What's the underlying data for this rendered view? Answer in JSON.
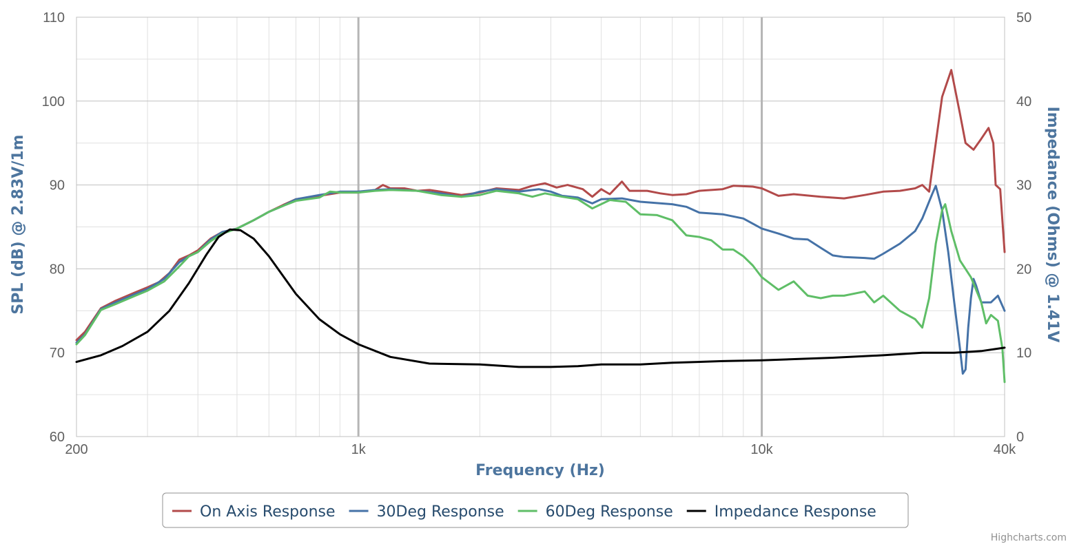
{
  "chart_data": {
    "type": "line",
    "credits": "Highcharts.com",
    "legend_position": "bottom-center",
    "grid": true,
    "xaxis": {
      "title": "Frequency (Hz)",
      "scale": "log",
      "range": [
        200,
        40000
      ],
      "tick_labels": [
        {
          "value": 200,
          "label": "200"
        },
        {
          "value": 1000,
          "label": "1k"
        },
        {
          "value": 10000,
          "label": "10k"
        },
        {
          "value": 40000,
          "label": "40k"
        }
      ]
    },
    "yaxis_left": {
      "title": "SPL (dB) @ 2.83V/1m",
      "range": [
        60,
        110
      ],
      "ticks": [
        60,
        70,
        80,
        90,
        100,
        110
      ]
    },
    "yaxis_right": {
      "title": "Impedance (Ohms) @ 1.41V",
      "range": [
        0,
        50
      ],
      "ticks": [
        0,
        10,
        20,
        30,
        40,
        50
      ]
    },
    "series": [
      {
        "name": "On Axis Response",
        "color": "#b24a4a",
        "axis": "left",
        "points": [
          [
            200,
            71.5
          ],
          [
            210,
            72.5
          ],
          [
            230,
            75.3
          ],
          [
            250,
            76.2
          ],
          [
            280,
            77.2
          ],
          [
            300,
            77.8
          ],
          [
            320,
            78.4
          ],
          [
            340,
            79.5
          ],
          [
            360,
            81.1
          ],
          [
            380,
            81.6
          ],
          [
            400,
            82.2
          ],
          [
            430,
            83.6
          ],
          [
            460,
            84.4
          ],
          [
            500,
            84.8
          ],
          [
            550,
            85.8
          ],
          [
            600,
            86.8
          ],
          [
            650,
            87.6
          ],
          [
            700,
            88.3
          ],
          [
            800,
            88.7
          ],
          [
            900,
            89.1
          ],
          [
            1000,
            89.1
          ],
          [
            1100,
            89.4
          ],
          [
            1150,
            90.0
          ],
          [
            1200,
            89.6
          ],
          [
            1300,
            89.6
          ],
          [
            1400,
            89.3
          ],
          [
            1500,
            89.4
          ],
          [
            1600,
            89.2
          ],
          [
            1800,
            88.8
          ],
          [
            2000,
            89.1
          ],
          [
            2200,
            89.6
          ],
          [
            2500,
            89.4
          ],
          [
            2700,
            89.9
          ],
          [
            2900,
            90.2
          ],
          [
            3100,
            89.7
          ],
          [
            3300,
            90.0
          ],
          [
            3600,
            89.5
          ],
          [
            3800,
            88.6
          ],
          [
            4000,
            89.5
          ],
          [
            4200,
            88.9
          ],
          [
            4500,
            90.4
          ],
          [
            4700,
            89.3
          ],
          [
            5200,
            89.3
          ],
          [
            5600,
            89.0
          ],
          [
            6000,
            88.8
          ],
          [
            6500,
            88.9
          ],
          [
            7000,
            89.3
          ],
          [
            8000,
            89.5
          ],
          [
            8500,
            89.9
          ],
          [
            9500,
            89.8
          ],
          [
            10000,
            89.6
          ],
          [
            11000,
            88.7
          ],
          [
            12000,
            88.9
          ],
          [
            14000,
            88.6
          ],
          [
            16000,
            88.4
          ],
          [
            18000,
            88.8
          ],
          [
            20000,
            89.2
          ],
          [
            22000,
            89.3
          ],
          [
            24000,
            89.6
          ],
          [
            25000,
            90.0
          ],
          [
            26000,
            89.2
          ],
          [
            27000,
            95.0
          ],
          [
            28000,
            100.5
          ],
          [
            29500,
            103.7
          ],
          [
            31000,
            98.5
          ],
          [
            32000,
            95.0
          ],
          [
            33500,
            94.2
          ],
          [
            35000,
            95.5
          ],
          [
            36500,
            96.8
          ],
          [
            37500,
            95.0
          ],
          [
            38000,
            90.0
          ],
          [
            39000,
            89.5
          ],
          [
            40000,
            82.0
          ]
        ]
      },
      {
        "name": "30Deg Response",
        "color": "#4572a7",
        "axis": "left",
        "points": [
          [
            200,
            71.2
          ],
          [
            210,
            72.2
          ],
          [
            230,
            75.2
          ],
          [
            250,
            76.0
          ],
          [
            280,
            77.0
          ],
          [
            300,
            77.6
          ],
          [
            330,
            78.8
          ],
          [
            360,
            80.8
          ],
          [
            380,
            81.5
          ],
          [
            400,
            82.0
          ],
          [
            430,
            83.5
          ],
          [
            460,
            84.4
          ],
          [
            500,
            84.8
          ],
          [
            550,
            85.8
          ],
          [
            600,
            86.8
          ],
          [
            650,
            87.5
          ],
          [
            700,
            88.3
          ],
          [
            800,
            88.8
          ],
          [
            900,
            89.2
          ],
          [
            1000,
            89.2
          ],
          [
            1100,
            89.4
          ],
          [
            1200,
            89.5
          ],
          [
            1400,
            89.3
          ],
          [
            1600,
            89.0
          ],
          [
            1800,
            88.6
          ],
          [
            2000,
            89.2
          ],
          [
            2200,
            89.5
          ],
          [
            2500,
            89.2
          ],
          [
            2800,
            89.5
          ],
          [
            3000,
            89.2
          ],
          [
            3200,
            88.7
          ],
          [
            3500,
            88.5
          ],
          [
            3800,
            87.8
          ],
          [
            4000,
            88.3
          ],
          [
            4500,
            88.4
          ],
          [
            5000,
            88.0
          ],
          [
            6000,
            87.7
          ],
          [
            6500,
            87.4
          ],
          [
            7000,
            86.7
          ],
          [
            7500,
            86.6
          ],
          [
            8000,
            86.5
          ],
          [
            9000,
            86.0
          ],
          [
            10000,
            84.8
          ],
          [
            11000,
            84.2
          ],
          [
            12000,
            83.6
          ],
          [
            13000,
            83.5
          ],
          [
            14000,
            82.5
          ],
          [
            15000,
            81.6
          ],
          [
            16000,
            81.4
          ],
          [
            18000,
            81.3
          ],
          [
            19000,
            81.2
          ],
          [
            20000,
            81.8
          ],
          [
            22000,
            83.0
          ],
          [
            24000,
            84.5
          ],
          [
            25000,
            86.0
          ],
          [
            26500,
            89.0
          ],
          [
            27000,
            89.9
          ],
          [
            28000,
            87.0
          ],
          [
            29000,
            82.0
          ],
          [
            30000,
            76.0
          ],
          [
            31000,
            70.5
          ],
          [
            31500,
            67.5
          ],
          [
            32000,
            68.0
          ],
          [
            32500,
            73.0
          ],
          [
            33000,
            76.5
          ],
          [
            33500,
            78.8
          ],
          [
            34000,
            78.0
          ],
          [
            35000,
            76.0
          ],
          [
            37000,
            76.0
          ],
          [
            38500,
            76.8
          ],
          [
            40000,
            75.0
          ]
        ]
      },
      {
        "name": "60Deg Response",
        "color": "#5fbe67",
        "axis": "left",
        "points": [
          [
            200,
            71.0
          ],
          [
            210,
            72.1
          ],
          [
            230,
            75.1
          ],
          [
            250,
            75.8
          ],
          [
            280,
            76.8
          ],
          [
            300,
            77.4
          ],
          [
            330,
            78.5
          ],
          [
            360,
            80.3
          ],
          [
            380,
            81.5
          ],
          [
            400,
            82.0
          ],
          [
            430,
            83.3
          ],
          [
            460,
            84.2
          ],
          [
            500,
            84.8
          ],
          [
            550,
            85.8
          ],
          [
            600,
            86.8
          ],
          [
            650,
            87.5
          ],
          [
            700,
            88.1
          ],
          [
            800,
            88.5
          ],
          [
            850,
            89.2
          ],
          [
            900,
            89.1
          ],
          [
            1000,
            89.1
          ],
          [
            1100,
            89.3
          ],
          [
            1200,
            89.4
          ],
          [
            1400,
            89.3
          ],
          [
            1600,
            88.8
          ],
          [
            1800,
            88.6
          ],
          [
            2000,
            88.8
          ],
          [
            2200,
            89.3
          ],
          [
            2500,
            89.0
          ],
          [
            2700,
            88.6
          ],
          [
            2900,
            89.0
          ],
          [
            3200,
            88.6
          ],
          [
            3500,
            88.3
          ],
          [
            3800,
            87.2
          ],
          [
            4200,
            88.2
          ],
          [
            4600,
            88.0
          ],
          [
            5000,
            86.5
          ],
          [
            5500,
            86.4
          ],
          [
            6000,
            85.8
          ],
          [
            6500,
            84.0
          ],
          [
            7000,
            83.8
          ],
          [
            7500,
            83.4
          ],
          [
            8000,
            82.3
          ],
          [
            8500,
            82.3
          ],
          [
            9000,
            81.5
          ],
          [
            9500,
            80.4
          ],
          [
            10000,
            79.0
          ],
          [
            11000,
            77.5
          ],
          [
            12000,
            78.5
          ],
          [
            13000,
            76.8
          ],
          [
            14000,
            76.5
          ],
          [
            15000,
            76.8
          ],
          [
            16000,
            76.8
          ],
          [
            18000,
            77.3
          ],
          [
            19000,
            76.0
          ],
          [
            20000,
            76.8
          ],
          [
            22000,
            75.0
          ],
          [
            24000,
            74.0
          ],
          [
            25000,
            73.0
          ],
          [
            26000,
            76.5
          ],
          [
            27000,
            83.0
          ],
          [
            28000,
            87.0
          ],
          [
            28500,
            87.7
          ],
          [
            29500,
            84.5
          ],
          [
            31000,
            81.0
          ],
          [
            33000,
            79.0
          ],
          [
            35000,
            76.0
          ],
          [
            36000,
            73.5
          ],
          [
            37000,
            74.5
          ],
          [
            38500,
            73.8
          ],
          [
            39500,
            70.5
          ],
          [
            40000,
            66.5
          ]
        ]
      },
      {
        "name": "Impedance Response",
        "color": "#000000",
        "axis": "right",
        "points": [
          [
            200,
            8.9
          ],
          [
            230,
            9.7
          ],
          [
            260,
            10.8
          ],
          [
            300,
            12.5
          ],
          [
            340,
            15.0
          ],
          [
            380,
            18.3
          ],
          [
            420,
            21.7
          ],
          [
            450,
            23.8
          ],
          [
            480,
            24.7
          ],
          [
            510,
            24.6
          ],
          [
            550,
            23.6
          ],
          [
            600,
            21.5
          ],
          [
            700,
            17.0
          ],
          [
            800,
            14.0
          ],
          [
            900,
            12.2
          ],
          [
            1000,
            11.0
          ],
          [
            1200,
            9.5
          ],
          [
            1500,
            8.7
          ],
          [
            2000,
            8.6
          ],
          [
            2500,
            8.3
          ],
          [
            3000,
            8.3
          ],
          [
            3500,
            8.4
          ],
          [
            4000,
            8.6
          ],
          [
            5000,
            8.6
          ],
          [
            6000,
            8.8
          ],
          [
            8000,
            9.0
          ],
          [
            10000,
            9.1
          ],
          [
            15000,
            9.4
          ],
          [
            20000,
            9.7
          ],
          [
            25000,
            10.0
          ],
          [
            30000,
            10.0
          ],
          [
            35000,
            10.2
          ],
          [
            40000,
            10.6
          ]
        ]
      }
    ]
  }
}
